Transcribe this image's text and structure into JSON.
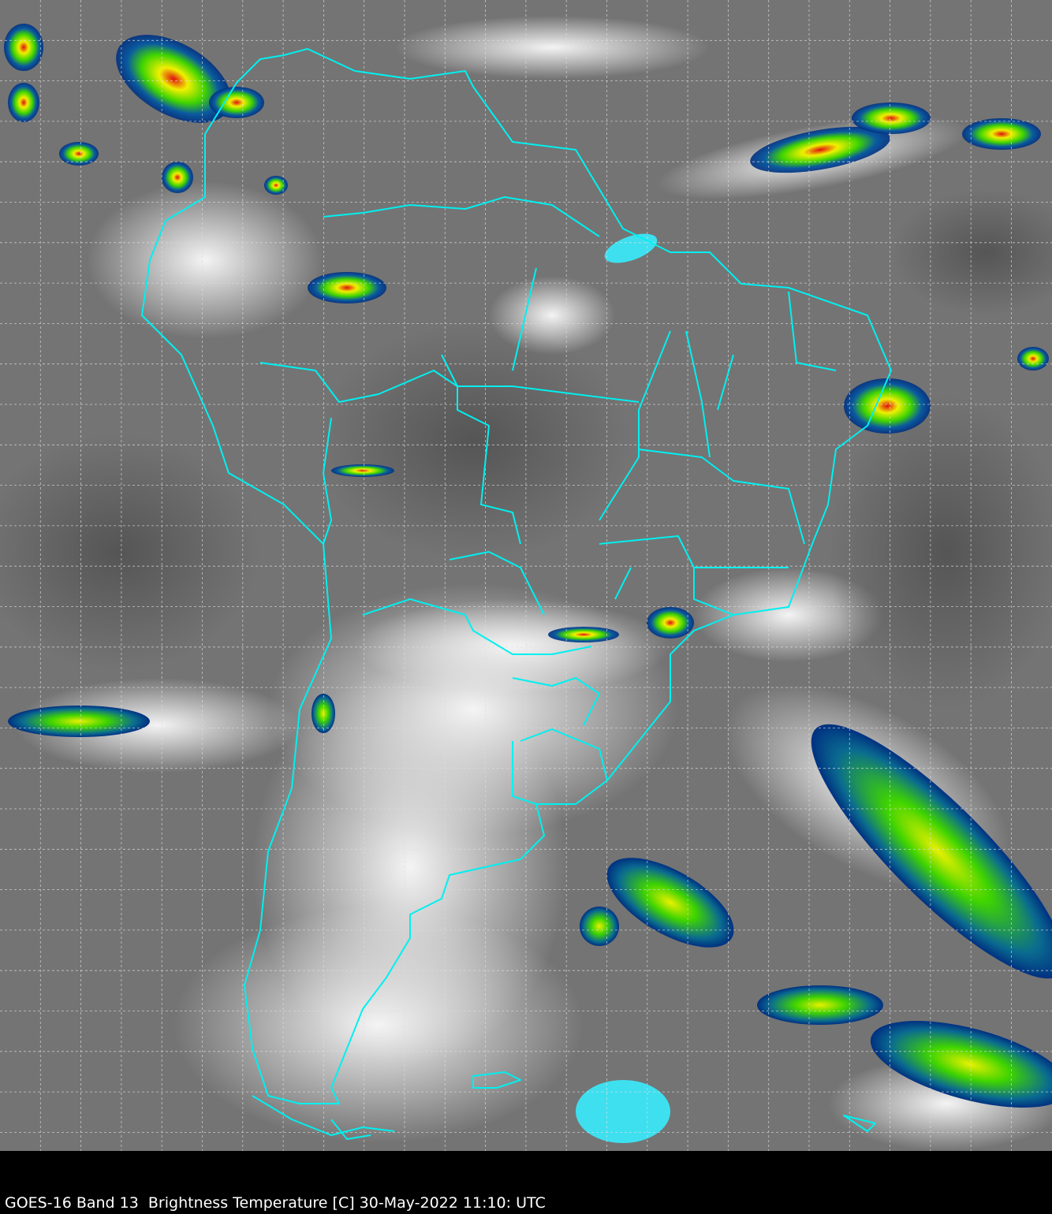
{
  "caption": "GOES-16 Band 13  Brightness Temperature [C] 30-May-2022 11:10: UTC",
  "colors": {
    "background": "#6e6e6e",
    "boundaries": "#00f0f0",
    "grid": "#dddddd",
    "cold_cloud_green": "#3fd400",
    "cold_cloud_yellow": "#f0f000",
    "cold_cloud_red": "#e01010",
    "cold_cloud_blue": "#003080"
  }
}
